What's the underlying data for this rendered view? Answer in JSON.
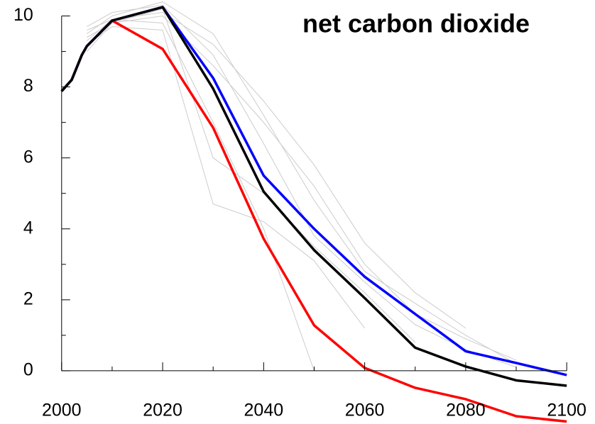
{
  "chart_data": {
    "type": "line",
    "title": "net carbon dioxide",
    "x": [
      2000,
      2002,
      2004,
      2005,
      2010,
      2020,
      2030,
      2040,
      2050,
      2060,
      2070,
      2080,
      2090,
      2100
    ],
    "series": [
      {
        "color": "#cccccc",
        "values": [
          null,
          null,
          null,
          9.6,
          9.9,
          10.1,
          9.2,
          7.6,
          5.8,
          3.6,
          2.2,
          1.2,
          null,
          null
        ]
      },
      {
        "color": "#cccccc",
        "values": [
          null,
          null,
          null,
          9.4,
          9.8,
          10.0,
          8.6,
          7.0,
          5.2,
          3.0,
          1.6,
          0.9,
          0.3,
          null
        ]
      },
      {
        "color": "#cccccc",
        "values": [
          null,
          null,
          null,
          9.2,
          9.7,
          9.6,
          4.7,
          4.2,
          3.1,
          1.2,
          null,
          null,
          null,
          null
        ]
      },
      {
        "color": "#cccccc",
        "values": [
          null,
          null,
          null,
          9.0,
          9.8,
          10.2,
          6.0,
          5.0,
          3.5,
          2.2,
          0.8,
          null,
          null,
          null
        ]
      },
      {
        "color": "#cccccc",
        "values": [
          null,
          null,
          null,
          9.5,
          10.0,
          10.4,
          9.5,
          7.2,
          4.8,
          2.8,
          1.9,
          1.0,
          0.2,
          null
        ]
      },
      {
        "color": "#cccccc",
        "values": [
          null,
          null,
          null,
          9.3,
          9.9,
          9.8,
          7.0,
          4.0,
          0.0,
          null,
          null,
          null,
          null,
          null
        ]
      },
      {
        "color": "#cccccc",
        "values": [
          null,
          null,
          null,
          9.7,
          10.1,
          10.3,
          8.9,
          6.4,
          3.8,
          2.5,
          1.3,
          0.6,
          0.1,
          null
        ]
      },
      {
        "color": "#ff0000",
        "values": [
          7.88,
          8.2,
          8.9,
          9.15,
          9.87,
          9.07,
          6.85,
          3.72,
          1.28,
          0.08,
          -0.48,
          -0.8,
          -1.28,
          -1.43
        ]
      },
      {
        "color": "#0000ff",
        "values": [
          7.88,
          8.2,
          8.9,
          9.15,
          9.87,
          10.25,
          8.25,
          5.5,
          4.0,
          2.65,
          1.6,
          0.55,
          0.22,
          -0.12
        ]
      },
      {
        "color": "#000000",
        "values": [
          7.88,
          8.2,
          8.9,
          9.15,
          9.87,
          10.25,
          7.95,
          5.05,
          3.4,
          2.05,
          0.65,
          0.12,
          -0.27,
          -0.42
        ]
      }
    ],
    "xlim": [
      1987.8,
      2105.6
    ],
    "ylim": [
      -1.5,
      10.45
    ],
    "xticks": [
      2000,
      2020,
      2040,
      2060,
      2080,
      2100
    ],
    "xticks_minor": [
      2010,
      2030,
      2050,
      2070,
      2090
    ],
    "yticks": [
      0,
      2,
      4,
      6,
      8,
      10
    ],
    "yticks_minor": [
      1,
      3,
      5,
      7,
      9
    ]
  }
}
